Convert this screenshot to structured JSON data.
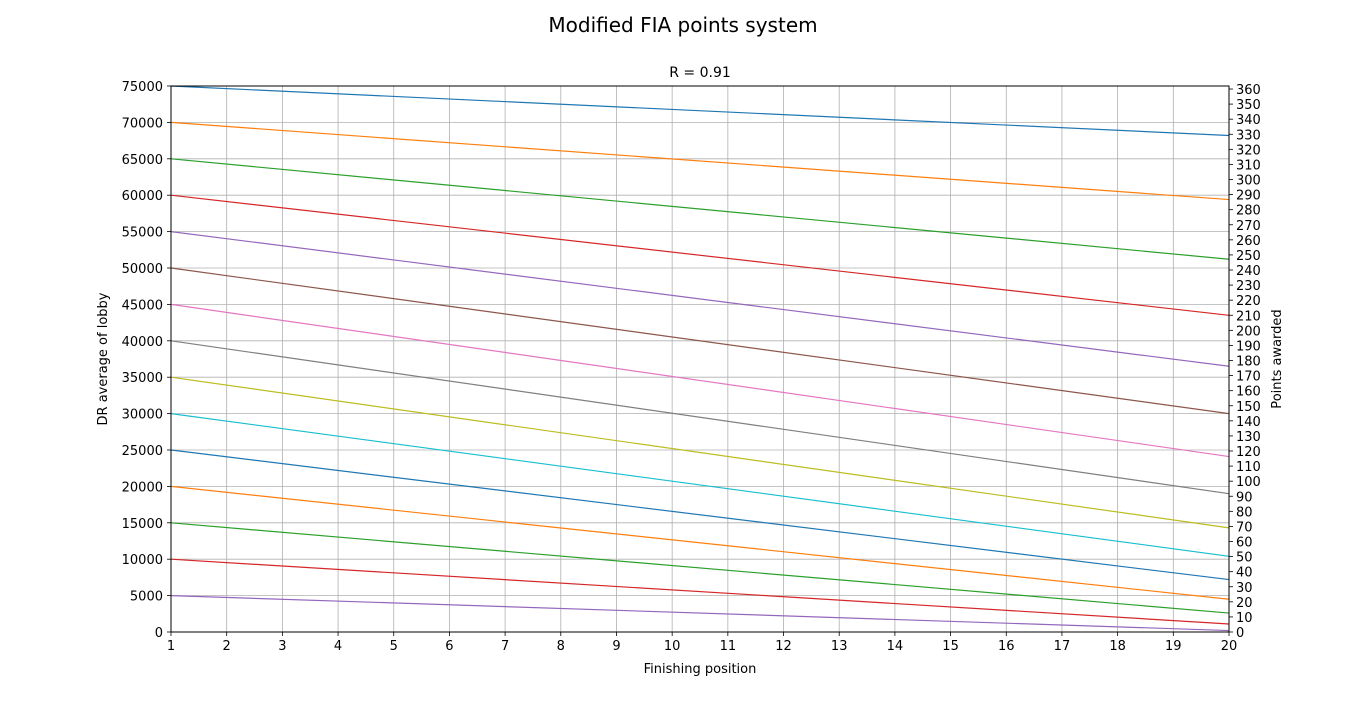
{
  "chart_data": {
    "type": "line",
    "suptitle": "Modified FIA points system",
    "title": "R = 0.91",
    "xlabel": "Finishing position",
    "ylabel": "DR average of lobby",
    "ylabel_right": "Points awarded",
    "xlim": [
      1,
      20
    ],
    "ylim": [
      0,
      75000
    ],
    "ylim_right": [
      0,
      362
    ],
    "x_ticks": [
      1,
      2,
      3,
      4,
      5,
      6,
      7,
      8,
      9,
      10,
      11,
      12,
      13,
      14,
      15,
      16,
      17,
      18,
      19,
      20
    ],
    "y_ticks": [
      0,
      5000,
      10000,
      15000,
      20000,
      25000,
      30000,
      35000,
      40000,
      45000,
      50000,
      55000,
      60000,
      65000,
      70000,
      75000
    ],
    "y_ticks_right": [
      0,
      10,
      20,
      30,
      40,
      50,
      60,
      70,
      80,
      90,
      100,
      110,
      120,
      130,
      140,
      150,
      160,
      170,
      180,
      190,
      200,
      210,
      220,
      230,
      240,
      250,
      260,
      270,
      280,
      290,
      300,
      310,
      320,
      330,
      340,
      350,
      360
    ],
    "grid": true,
    "x": [
      1,
      20
    ],
    "series": [
      {
        "color": "#1f77b4",
        "values": [
          75000,
          68200
        ]
      },
      {
        "color": "#ff7f0e",
        "values": [
          70000,
          59400
        ]
      },
      {
        "color": "#2ca02c",
        "values": [
          65000,
          51200
        ]
      },
      {
        "color": "#d62728",
        "values": [
          60000,
          43500
        ]
      },
      {
        "color": "#9467bd",
        "values": [
          55000,
          36500
        ]
      },
      {
        "color": "#8c564b",
        "values": [
          50000,
          30000
        ]
      },
      {
        "color": "#e377c2",
        "values": [
          45000,
          24100
        ]
      },
      {
        "color": "#7f7f7f",
        "values": [
          40000,
          19000
        ]
      },
      {
        "color": "#bcbd22",
        "values": [
          35000,
          14300
        ]
      },
      {
        "color": "#17becf",
        "values": [
          30000,
          10400
        ]
      },
      {
        "color": "#1f77b4",
        "values": [
          25000,
          7200
        ]
      },
      {
        "color": "#ff7f0e",
        "values": [
          20000,
          4500
        ]
      },
      {
        "color": "#2ca02c",
        "values": [
          15000,
          2600
        ]
      },
      {
        "color": "#d62728",
        "values": [
          10000,
          1100
        ]
      },
      {
        "color": "#9467bd",
        "values": [
          5000,
          200
        ]
      }
    ]
  }
}
